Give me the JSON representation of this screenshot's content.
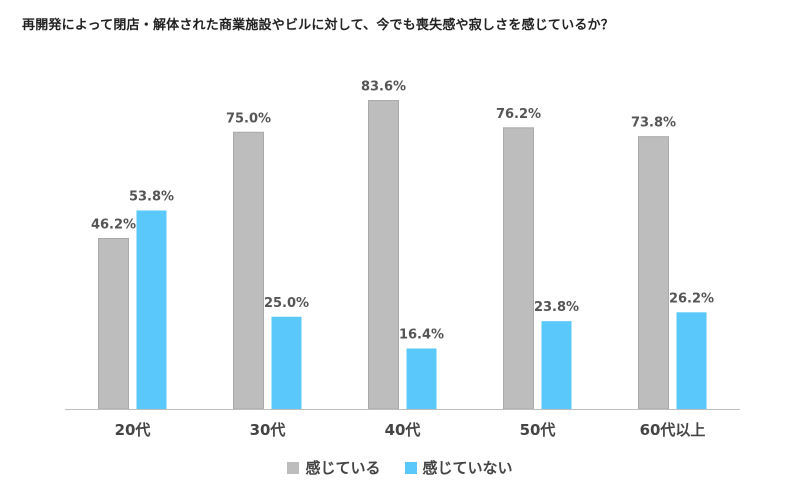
{
  "chart_data": {
    "type": "bar",
    "title": "再開発によって閉店・解体された商業施設やビルに対して、今でも喪失感や寂しさを感じているか？",
    "categories": [
      "20代",
      "30代",
      "40代",
      "50代",
      "60代以上"
    ],
    "series": [
      {
        "name": "感じている",
        "color": "#bdbdbd",
        "values": [
          46.2,
          75.0,
          83.6,
          76.2,
          73.8
        ]
      },
      {
        "name": "感じていない",
        "color": "#5ac8fa",
        "values": [
          53.8,
          25.0,
          16.4,
          23.8,
          26.2
        ]
      }
    ],
    "value_labels": [
      [
        "46.2%",
        "75.0%",
        "83.6%",
        "76.2%",
        "73.8%"
      ],
      [
        "53.8%",
        "25.0%",
        "16.4%",
        "23.8%",
        "26.2%"
      ]
    ],
    "ylim": [
      0,
      100
    ],
    "xlabel": "",
    "ylabel": "",
    "grid": false,
    "legend_position": "bottom"
  }
}
